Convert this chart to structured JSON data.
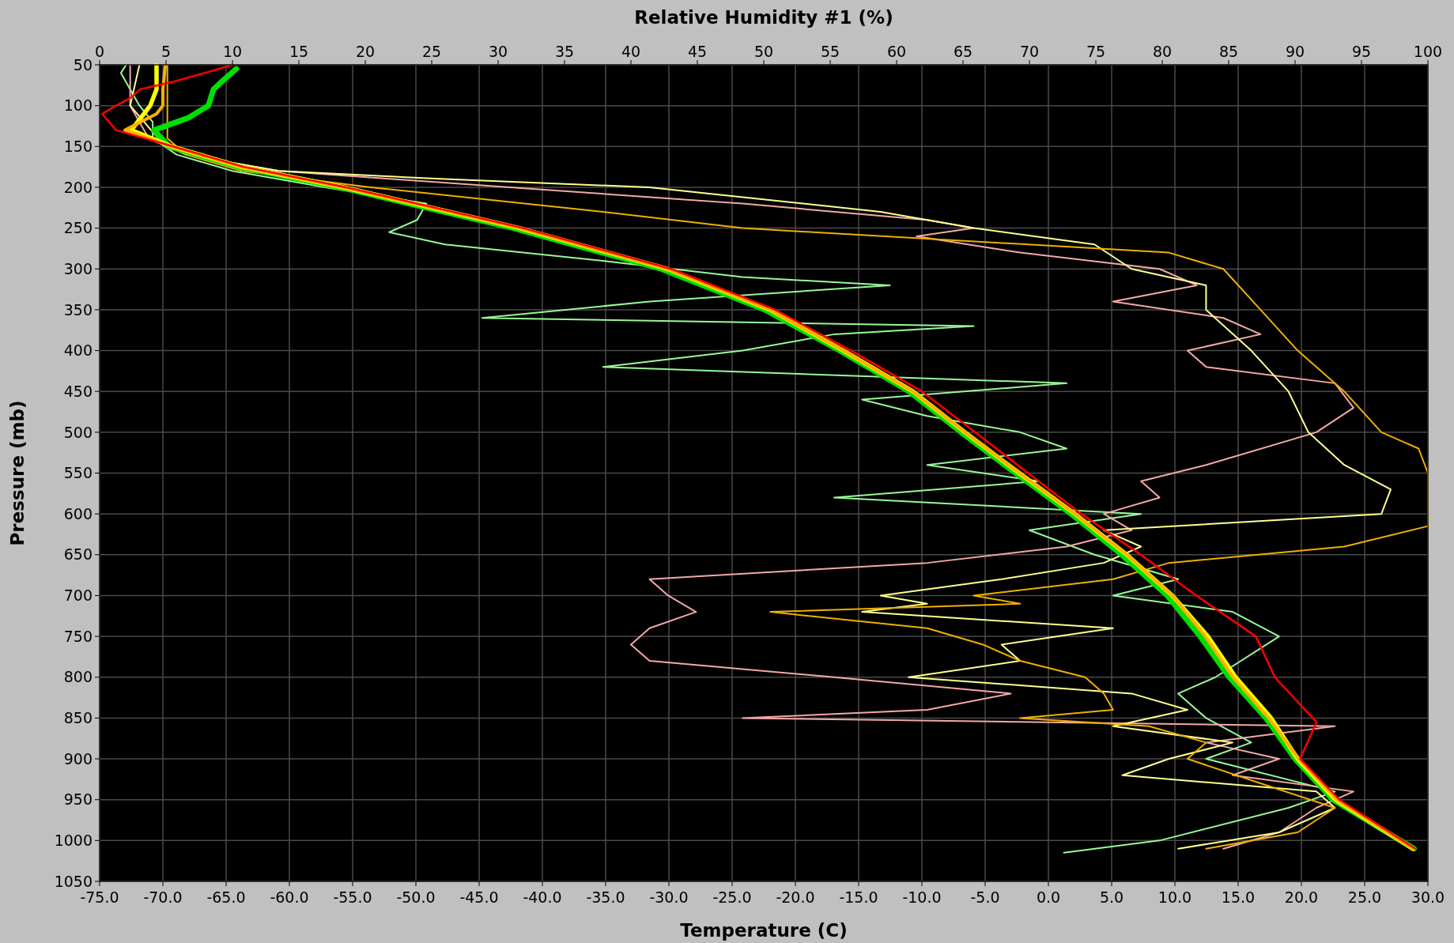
{
  "chart_data": {
    "type": "line",
    "xlabel": "Temperature (C)",
    "x2label": "Relative Humidity #1 (%)",
    "ylabel": "Pressure (mb)",
    "xlim": [
      -75,
      30
    ],
    "xticks": [
      {
        "value": -75,
        "label": "-75.0"
      },
      {
        "value": -70,
        "label": "-70.0"
      },
      {
        "value": -65,
        "label": "-65.0"
      },
      {
        "value": -60,
        "label": "-60.0"
      },
      {
        "value": -55,
        "label": "-55.0"
      },
      {
        "value": -50,
        "label": "-50.0"
      },
      {
        "value": -45,
        "label": "-45.0"
      },
      {
        "value": -40,
        "label": "-40.0"
      },
      {
        "value": -35,
        "label": "-35.0"
      },
      {
        "value": -30,
        "label": "-30.0"
      },
      {
        "value": -25,
        "label": "-25.0"
      },
      {
        "value": -20,
        "label": "-20.0"
      },
      {
        "value": -15,
        "label": "-15.0"
      },
      {
        "value": -10,
        "label": "-10.0"
      },
      {
        "value": -5,
        "label": "-5.0"
      },
      {
        "value": 0,
        "label": "0.0"
      },
      {
        "value": 5,
        "label": "5.0"
      },
      {
        "value": 10,
        "label": "10.0"
      },
      {
        "value": 15,
        "label": "15.0"
      },
      {
        "value": 20,
        "label": "20.0"
      },
      {
        "value": 25,
        "label": "25.0"
      },
      {
        "value": 30,
        "label": "30.0"
      }
    ],
    "x2lim": [
      0,
      100
    ],
    "x2ticks": [
      0,
      5,
      10,
      15,
      20,
      25,
      30,
      35,
      40,
      45,
      50,
      55,
      60,
      65,
      70,
      75,
      80,
      85,
      90,
      95,
      100
    ],
    "ylim": [
      1050,
      50
    ],
    "yticks": [
      50,
      100,
      150,
      200,
      250,
      300,
      350,
      400,
      450,
      500,
      550,
      600,
      650,
      700,
      750,
      800,
      850,
      900,
      950,
      1000,
      1050
    ],
    "grid": true,
    "series": [
      {
        "axis": "x2",
        "color": "#98f898",
        "x": [
          72.6,
          79.8,
          89.5,
          93,
          83.3,
          86.7,
          83.3,
          81.2,
          84,
          88.8,
          85.3,
          76.3,
          81.2,
          74.9,
          70,
          78.4,
          55.3,
          70.7,
          62.3,
          72.8,
          69.3,
          62.3,
          57.4,
          72.8,
          37.9,
          48.4,
          55.3,
          65.8,
          28.8,
          41.4,
          59.5,
          48.4,
          37.9,
          26,
          21.8,
          23.9,
          24.6,
          17,
          10,
          5.8,
          4,
          4,
          3,
          2.3,
          1.6,
          2
        ],
        "values": [
          1015,
          1000,
          960,
          940,
          900,
          880,
          850,
          820,
          800,
          750,
          720,
          700,
          680,
          650,
          620,
          600,
          580,
          560,
          540,
          520,
          500,
          480,
          460,
          440,
          420,
          400,
          380,
          370,
          360,
          340,
          320,
          310,
          290,
          270,
          255,
          240,
          220,
          200,
          180,
          160,
          140,
          120,
          100,
          80,
          60,
          50
        ]
      },
      {
        "axis": "x2",
        "color": "#f4a8a8",
        "x": [
          84.6,
          88.8,
          91.6,
          94.4,
          85.3,
          88.8,
          83.3,
          93,
          48.4,
          62.3,
          68.6,
          55.3,
          41.4,
          40,
          41.4,
          44.9,
          42.8,
          41.4,
          51.8,
          62.3,
          72.8,
          77.7,
          75.6,
          79.8,
          78.4,
          83.3,
          91.6,
          94.4,
          93,
          83.3,
          81.9,
          87.4,
          84.6,
          76.3,
          82.6,
          79.8,
          69.3,
          61.5,
          65.8,
          62.3,
          48.4,
          30.9,
          13.5,
          6.5,
          3.7,
          2.3,
          2.3
        ],
        "values": [
          1010,
          990,
          960,
          940,
          920,
          900,
          880,
          860,
          850,
          840,
          820,
          800,
          780,
          760,
          740,
          720,
          700,
          680,
          670,
          660,
          640,
          620,
          600,
          580,
          560,
          540,
          500,
          470,
          440,
          420,
          400,
          380,
          360,
          340,
          320,
          300,
          280,
          260,
          250,
          240,
          220,
          200,
          180,
          160,
          140,
          100,
          50
        ]
      },
      {
        "axis": "x2",
        "color": "#ffff90",
        "x": [
          81.2,
          88.8,
          93,
          91.6,
          77,
          80.5,
          85.3,
          76.3,
          81.9,
          77.7,
          60.9,
          69.3,
          67.9,
          76.3,
          57.4,
          62.3,
          58.8,
          67.9,
          75.6,
          78.4,
          75.6,
          96.5,
          97.2,
          93.7,
          91,
          89.5,
          86.7,
          83.3,
          83.3,
          77.7,
          74.9,
          65.8,
          58.8,
          41.4,
          26,
          13.5,
          6.5,
          4.4,
          2.3,
          3
        ],
        "values": [
          1010,
          990,
          960,
          940,
          920,
          900,
          880,
          860,
          840,
          820,
          800,
          780,
          760,
          740,
          720,
          710,
          700,
          680,
          660,
          640,
          620,
          600,
          570,
          540,
          500,
          450,
          400,
          350,
          320,
          300,
          270,
          250,
          230,
          200,
          190,
          180,
          160,
          140,
          100,
          50
        ]
      },
      {
        "axis": "x2",
        "color": "#f0b000",
        "x": [
          83.3,
          90.2,
          93,
          87.4,
          81.9,
          83.3,
          79,
          69.3,
          76.3,
          75.6,
          74.2,
          69.3,
          66.5,
          62.3,
          50.5,
          69.3,
          65.8,
          76.3,
          80.5,
          93.7,
          100,
          100,
          99.3,
          96.5,
          93.7,
          90.2,
          87.4,
          84.6,
          80.5,
          48.4,
          37.9,
          20.4,
          10.7,
          6.5,
          5.1,
          5.1,
          5.1
        ],
        "values": [
          1010,
          990,
          960,
          930,
          900,
          880,
          860,
          850,
          840,
          820,
          800,
          780,
          760,
          740,
          720,
          710,
          700,
          680,
          660,
          640,
          615,
          550,
          520,
          500,
          450,
          400,
          350,
          300,
          280,
          250,
          230,
          200,
          180,
          160,
          140,
          100,
          50
        ]
      },
      {
        "color": "#00e000",
        "x": [
          28.9,
          22.5,
          19.5,
          17.2,
          14.3,
          12,
          9.4,
          5.8,
          1.8,
          -2.6,
          -6.9,
          -11,
          -16.5,
          -22.4,
          -30.6,
          -42.3,
          -56,
          -64,
          -69.5,
          -70.7,
          -68,
          -66.4,
          -66,
          -65.3,
          -64.2
        ],
        "values": [
          1010,
          950,
          900,
          850,
          800,
          750,
          700,
          650,
          600,
          550,
          500,
          450,
          400,
          350,
          300,
          250,
          200,
          175,
          150,
          130,
          115,
          100,
          80,
          70,
          55
        ]
      },
      {
        "color": "#ffff00",
        "x": [
          28.8,
          22.7,
          19.7,
          17.6,
          14.8,
          12.6,
          9.8,
          6.2,
          2.1,
          -2.3,
          -6.6,
          -10.7,
          -16.2,
          -22,
          -30.1,
          -41.8,
          -55.7,
          -63.8,
          -69.3,
          -72.5,
          -71.5,
          -71,
          -70.5,
          -70.5
        ],
        "values": [
          1010,
          950,
          900,
          850,
          800,
          750,
          700,
          650,
          600,
          550,
          500,
          450,
          400,
          350,
          300,
          250,
          200,
          175,
          150,
          130,
          110,
          100,
          80,
          50
        ]
      },
      {
        "color": "#ffb000",
        "x": [
          28.8,
          22.8,
          19.8,
          17.4,
          14.6,
          12.4,
          9.8,
          6.2,
          2.1,
          -2.3,
          -6.6,
          -10.7,
          -16.2,
          -22,
          -30.1,
          -41.8,
          -55.7,
          -63.8,
          -69.3,
          -73,
          -70.5,
          -70,
          -70,
          -69.8
        ],
        "values": [
          1010,
          950,
          900,
          850,
          800,
          750,
          700,
          650,
          600,
          550,
          500,
          450,
          400,
          350,
          300,
          250,
          200,
          175,
          150,
          130,
          110,
          100,
          80,
          50
        ]
      },
      {
        "color": "#ff0000",
        "x": [
          29,
          23,
          19.9,
          21.2,
          17.9,
          16.4,
          11.7,
          7.3,
          2.6,
          -1.6,
          -5.8,
          -10,
          -15.6,
          -21.6,
          -29.8,
          -41.5,
          -55.5,
          -63.6,
          -69.2,
          -73.7,
          -74.8,
          -73.7,
          -72.5,
          -71.8,
          -69,
          -66.7,
          -64.5
        ],
        "values": [
          1010,
          950,
          900,
          855,
          800,
          750,
          700,
          650,
          600,
          550,
          500,
          450,
          400,
          350,
          300,
          250,
          200,
          175,
          150,
          130,
          110,
          100,
          90,
          80,
          70,
          60,
          50
        ]
      }
    ]
  }
}
